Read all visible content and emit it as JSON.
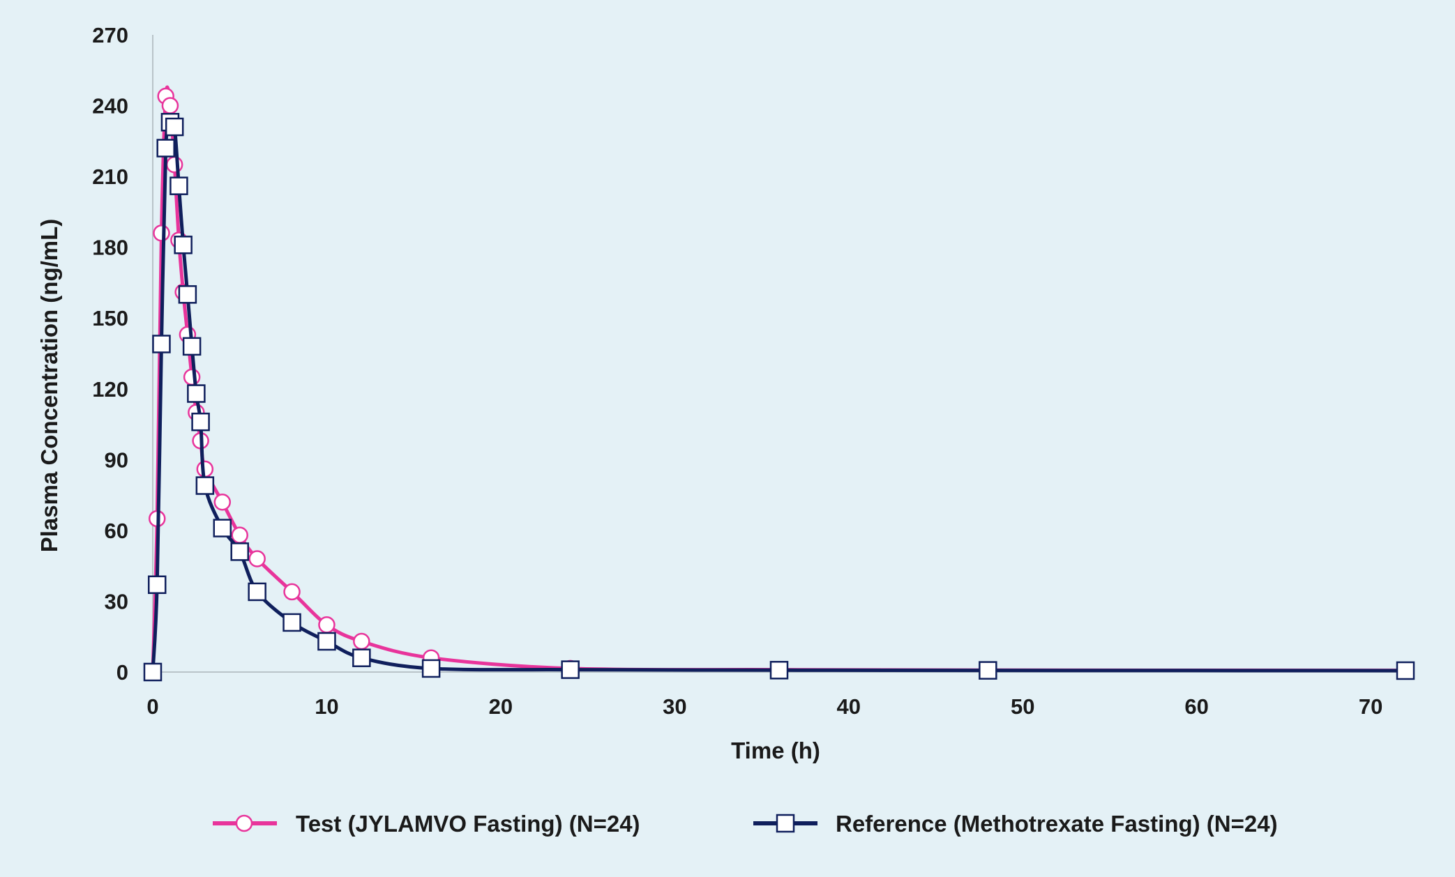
{
  "chart_data": {
    "type": "line",
    "title": "",
    "xlabel": "Time (h)",
    "ylabel": "Plasma Concentration (ng/mL)",
    "xlim": [
      0,
      72
    ],
    "ylim": [
      0,
      270
    ],
    "xticks": [
      0,
      10,
      20,
      30,
      40,
      50,
      60,
      70
    ],
    "yticks": [
      0,
      30,
      60,
      90,
      120,
      150,
      180,
      210,
      240,
      270
    ],
    "legend_position": "bottom",
    "series": [
      {
        "name": "Test (JYLAMVO Fasting) (N=24)",
        "color": "#e8349b",
        "marker": "circle",
        "x": [
          0,
          0.25,
          0.5,
          0.75,
          1,
          1.25,
          1.5,
          1.75,
          2,
          2.25,
          2.5,
          2.75,
          3,
          4,
          5,
          6,
          8,
          10,
          12,
          16,
          24,
          36,
          48,
          72
        ],
        "y": [
          0,
          65,
          186,
          244,
          240,
          215,
          183,
          161,
          143,
          125,
          110,
          98,
          86,
          72,
          58,
          48,
          34,
          20,
          13,
          6,
          1.5,
          1,
          0.8,
          0.7
        ]
      },
      {
        "name": "Reference (Methotrexate Fasting) (N=24)",
        "color": "#0f1f5c",
        "marker": "square",
        "x": [
          0,
          0.25,
          0.5,
          0.75,
          1,
          1.25,
          1.5,
          1.75,
          2,
          2.25,
          2.5,
          2.75,
          3,
          4,
          5,
          6,
          8,
          10,
          12,
          16,
          24,
          36,
          48,
          72
        ],
        "y": [
          0,
          37,
          139,
          222,
          233,
          231,
          206,
          181,
          160,
          138,
          118,
          106,
          79,
          61,
          51,
          34,
          21,
          13,
          6,
          1.5,
          1,
          0.8,
          0.7,
          0.6
        ]
      }
    ]
  }
}
